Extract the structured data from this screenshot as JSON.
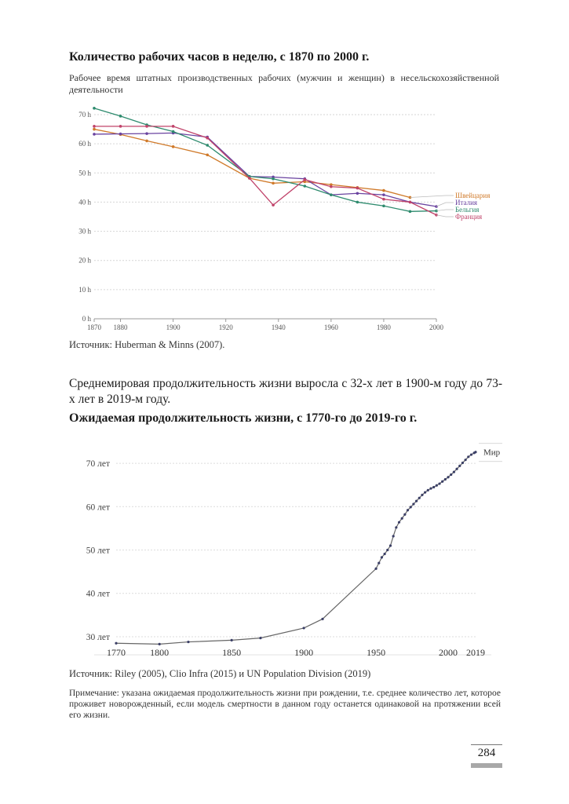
{
  "section1": {
    "title": "Количество рабочих часов в неделю, с 1870 по 2000 г.",
    "subtitle": "Рабочее время штатных производственных рабочих (мужчин и женщин) в несельскохозяйственной деятельности",
    "source": "Источник: Huberman & Minns (2007)."
  },
  "section2": {
    "intro": "Среднемировая продолжительность жизни выросла с 32-х лет в 1900-м году до 73-х лет в 2019-м году.",
    "title": "Ожидаемая продолжительность жизни, с 1770-го до 2019-го г.",
    "source": "Источник: Riley (2005), Clio Infra (2015) и UN Population Division (2019)",
    "note": "Примечание: указана ожидаемая продолжительность жизни при рождении, т.е. среднее количество лет, которое проживет новорожденный, если модель смертности в данном году останется одинаковой на протяжении всей его жизни."
  },
  "page_number": "284",
  "chart_data": [
    {
      "type": "line",
      "title": "Количество рабочих часов в неделю, с 1870 по 2000 г.",
      "xlabel": "",
      "ylabel": "",
      "xlim": [
        1870,
        2000
      ],
      "ylim": [
        0,
        70
      ],
      "y_ticks": [
        0,
        10,
        20,
        30,
        40,
        50,
        60,
        70
      ],
      "y_tick_labels": [
        "0 h",
        "10 h",
        "20 h",
        "30 h",
        "40 h",
        "50 h",
        "60 h",
        "70 h"
      ],
      "x_ticks": [
        1870,
        1880,
        1900,
        1920,
        1940,
        1960,
        1980,
        2000
      ],
      "x_tick_labels": [
        "1870",
        "1880",
        "1900",
        "1920",
        "1940",
        "1960",
        "1980",
        "2000"
      ],
      "grid": true,
      "legend": "right",
      "series": [
        {
          "name": "Швейцария",
          "color": "#d07a2a",
          "x": [
            1870,
            1880,
            1890,
            1900,
            1913,
            1929,
            1938,
            1950,
            1960,
            1970,
            1980,
            1990
          ],
          "y": [
            65,
            63.2,
            61,
            59,
            56.2,
            48.2,
            46.5,
            47,
            46,
            45,
            44,
            41.6
          ]
        },
        {
          "name": "Италия",
          "color": "#6a43a0",
          "x": [
            1870,
            1880,
            1890,
            1900,
            1913,
            1929,
            1938,
            1950,
            1960,
            1970,
            1980,
            1990,
            2000
          ],
          "y": [
            63.3,
            63.4,
            63.5,
            63.7,
            62.3,
            48.8,
            48.6,
            48,
            42.5,
            43,
            42.5,
            40,
            38.5
          ]
        },
        {
          "name": "Бельгия",
          "color": "#2e8b6e",
          "x": [
            1870,
            1880,
            1890,
            1900,
            1913,
            1929,
            1938,
            1950,
            1960,
            1970,
            1980,
            1990,
            2000
          ],
          "y": [
            72.2,
            69.5,
            66.5,
            64.2,
            59.5,
            48.8,
            48,
            45.5,
            42.5,
            40,
            38.7,
            36.8,
            37
          ]
        },
        {
          "name": "Франция",
          "color": "#c0436a",
          "x": [
            1870,
            1880,
            1890,
            1900,
            1913,
            1929,
            1938,
            1950,
            1960,
            1970,
            1980,
            1990,
            2000
          ],
          "y": [
            66,
            66,
            66,
            66,
            62,
            48.2,
            39,
            47.7,
            45.3,
            44.8,
            41,
            40,
            35.6
          ]
        }
      ]
    },
    {
      "type": "line",
      "title": "Ожидаемая продолжительность жизни, с 1770-го до 2019-го г.",
      "xlabel": "",
      "ylabel": "",
      "xlim": [
        1770,
        2019
      ],
      "ylim": [
        28,
        74
      ],
      "y_ticks": [
        30,
        40,
        50,
        60,
        70
      ],
      "y_tick_labels": [
        "30 лет",
        "40 лет",
        "50 лет",
        "60 лет",
        "70 лет"
      ],
      "x_ticks": [
        1770,
        1800,
        1850,
        1900,
        1950,
        2000,
        2019
      ],
      "x_tick_labels": [
        "1770",
        "1800",
        "1850",
        "1900",
        "1950",
        "2000",
        "2019"
      ],
      "grid": true,
      "legend": "top-right",
      "series": [
        {
          "name": "Мир",
          "color": "#3b3f66",
          "x": [
            1770,
            1800,
            1820,
            1850,
            1870,
            1900,
            1913,
            1950,
            1952,
            1954,
            1956,
            1958,
            1960,
            1962,
            1964,
            1966,
            1968,
            1970,
            1972,
            1974,
            1976,
            1978,
            1980,
            1982,
            1984,
            1986,
            1988,
            1990,
            1992,
            1994,
            1996,
            1998,
            2000,
            2002,
            2004,
            2006,
            2008,
            2010,
            2012,
            2014,
            2016,
            2018,
            2019
          ],
          "y": [
            28.5,
            28.3,
            28.8,
            29.2,
            29.7,
            32.0,
            34.1,
            45.7,
            47.0,
            48.3,
            49.1,
            50.0,
            51.0,
            53.2,
            55.2,
            56.4,
            57.3,
            58.2,
            59.2,
            59.9,
            60.6,
            61.3,
            62.0,
            62.7,
            63.3,
            63.8,
            64.2,
            64.5,
            64.9,
            65.3,
            65.8,
            66.3,
            66.8,
            67.4,
            68.0,
            68.7,
            69.4,
            70.1,
            70.8,
            71.5,
            72.0,
            72.4,
            72.6
          ]
        }
      ]
    }
  ]
}
